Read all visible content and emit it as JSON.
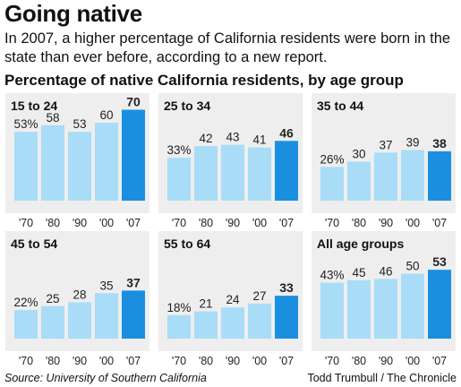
{
  "headline": "Going native",
  "subhead_lines": [
    "In 2007, a higher percentage of California residents were born in the",
    "state than ever before, according to a new report."
  ],
  "chart_heading": "Percentage of native California residents, by age group",
  "source": "Source: University of Southern California",
  "credit": "Todd Trumbull / The Chronicle",
  "colors": {
    "panel_bg": "#eeeeee",
    "bar": "#a9dcf7",
    "bar_highlight": "#1a8fe0"
  },
  "chart_data": [
    {
      "type": "bar",
      "title": "15 to 24",
      "categories": [
        "'70",
        "'80",
        "'90",
        "'00",
        "'07"
      ],
      "values": [
        53,
        58,
        53,
        60,
        70
      ],
      "value_labels": [
        "53%",
        "58",
        "53",
        "60",
        "70"
      ],
      "ylim": [
        0,
        80
      ]
    },
    {
      "type": "bar",
      "title": "25 to 34",
      "categories": [
        "'70",
        "'80",
        "'90",
        "'00",
        "'07"
      ],
      "values": [
        33,
        42,
        43,
        41,
        46
      ],
      "value_labels": [
        "33%",
        "42",
        "43",
        "41",
        "46"
      ],
      "ylim": [
        0,
        80
      ]
    },
    {
      "type": "bar",
      "title": "35 to 44",
      "categories": [
        "'70",
        "'80",
        "'90",
        "'00",
        "'07"
      ],
      "values": [
        26,
        30,
        37,
        39,
        38
      ],
      "value_labels": [
        "26%",
        "30",
        "37",
        "39",
        "38"
      ],
      "ylim": [
        0,
        80
      ]
    },
    {
      "type": "bar",
      "title": "45 to 54",
      "categories": [
        "'70",
        "'80",
        "'90",
        "'00",
        "'07"
      ],
      "values": [
        22,
        25,
        28,
        35,
        37
      ],
      "value_labels": [
        "22%",
        "25",
        "28",
        "35",
        "37"
      ],
      "ylim": [
        0,
        80
      ]
    },
    {
      "type": "bar",
      "title": "55 to 64",
      "categories": [
        "'70",
        "'80",
        "'90",
        "'00",
        "'07"
      ],
      "values": [
        18,
        21,
        24,
        27,
        33
      ],
      "value_labels": [
        "18%",
        "21",
        "24",
        "27",
        "33"
      ],
      "ylim": [
        0,
        80
      ]
    },
    {
      "type": "bar",
      "title": "All age groups",
      "categories": [
        "'70",
        "'80",
        "'90",
        "'00",
        "'07"
      ],
      "values": [
        43,
        45,
        46,
        50,
        53
      ],
      "value_labels": [
        "43%",
        "45",
        "46",
        "50",
        "53"
      ],
      "ylim": [
        0,
        80
      ]
    }
  ]
}
